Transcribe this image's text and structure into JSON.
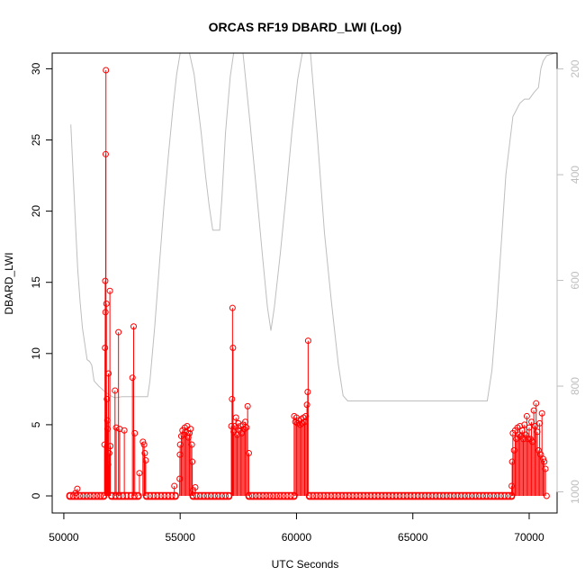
{
  "chart_data": {
    "type": "scatter",
    "title": "ORCAS RF19 DBARD_LWI (Log)",
    "xlabel": "UTC Seconds",
    "ylabel": "DBARD_LWI",
    "xlim": [
      49500,
      71200
    ],
    "ylim": [
      -1.2,
      31.1
    ],
    "x_ticks": [
      50000,
      55000,
      60000,
      65000,
      70000
    ],
    "y_ticks": [
      0,
      5,
      10,
      15,
      20,
      25,
      30
    ],
    "y2_label": "",
    "y2_lim_top_to_bottom": [
      170,
      1040
    ],
    "y2_ticks": [
      200,
      400,
      600,
      800,
      1000
    ],
    "grid": false,
    "colors": {
      "points": "#ff0000",
      "secondary": "#bebebe",
      "axes": "#000000"
    },
    "series": [
      {
        "type": "scatter-with-drop-lines",
        "color": "#ff0000",
        "points": [
          [
            50500,
            0.2
          ],
          [
            50580,
            0.5
          ],
          [
            51750,
            3.6
          ],
          [
            51770,
            10.4
          ],
          [
            51780,
            15.1
          ],
          [
            51790,
            12.9
          ],
          [
            51800,
            24.0
          ],
          [
            51810,
            29.9
          ],
          [
            51830,
            13.5
          ],
          [
            51850,
            6.8
          ],
          [
            51870,
            5.3
          ],
          [
            51880,
            4.7
          ],
          [
            51900,
            2.2
          ],
          [
            51920,
            8.6
          ],
          [
            51950,
            3.0
          ],
          [
            51980,
            14.4
          ],
          [
            52000,
            3.5
          ],
          [
            52200,
            7.4
          ],
          [
            52250,
            4.8
          ],
          [
            52350,
            11.5
          ],
          [
            52400,
            4.7
          ],
          [
            52600,
            4.6
          ],
          [
            52950,
            8.3
          ],
          [
            53000,
            11.9
          ],
          [
            53050,
            4.4
          ],
          [
            53250,
            1.6
          ],
          [
            53400,
            3.8
          ],
          [
            53450,
            3.6
          ],
          [
            53480,
            3.0
          ],
          [
            53520,
            2.5
          ],
          [
            54750,
            0.7
          ],
          [
            54980,
            1.2
          ],
          [
            54990,
            2.9
          ],
          [
            55000,
            3.6
          ],
          [
            55050,
            4.2
          ],
          [
            55100,
            4.6
          ],
          [
            55150,
            4.3
          ],
          [
            55200,
            4.8
          ],
          [
            55250,
            4.5
          ],
          [
            55300,
            4.9
          ],
          [
            55350,
            4.1
          ],
          [
            55400,
            4.4
          ],
          [
            55450,
            4.7
          ],
          [
            55500,
            3.6
          ],
          [
            55520,
            2.4
          ],
          [
            55550,
            0.4
          ],
          [
            55650,
            0.6
          ],
          [
            57200,
            4.9
          ],
          [
            57230,
            6.8
          ],
          [
            57250,
            13.2
          ],
          [
            57270,
            10.4
          ],
          [
            57300,
            4.5
          ],
          [
            57350,
            4.9
          ],
          [
            57400,
            5.5
          ],
          [
            57450,
            4.3
          ],
          [
            57500,
            5.1
          ],
          [
            57550,
            4.6
          ],
          [
            57600,
            4.9
          ],
          [
            57650,
            4.4
          ],
          [
            57700,
            5.0
          ],
          [
            57750,
            4.7
          ],
          [
            57800,
            5.2
          ],
          [
            57850,
            4.8
          ],
          [
            57900,
            6.3
          ],
          [
            57950,
            3.0
          ],
          [
            59900,
            5.6
          ],
          [
            59950,
            5.2
          ],
          [
            60000,
            5.5
          ],
          [
            60050,
            5.1
          ],
          [
            60100,
            5.3
          ],
          [
            60150,
            5.0
          ],
          [
            60200,
            5.4
          ],
          [
            60250,
            5.1
          ],
          [
            60300,
            5.5
          ],
          [
            60350,
            5.2
          ],
          [
            60400,
            5.6
          ],
          [
            60450,
            6.4
          ],
          [
            60480,
            7.3
          ],
          [
            60500,
            10.9
          ],
          [
            69250,
            0.7
          ],
          [
            69270,
            2.4
          ],
          [
            69300,
            4.4
          ],
          [
            69350,
            3.2
          ],
          [
            69400,
            4.6
          ],
          [
            69450,
            4.0
          ],
          [
            69500,
            4.8
          ],
          [
            69550,
            4.3
          ],
          [
            69600,
            4.9
          ],
          [
            69650,
            4.2
          ],
          [
            69700,
            4.6
          ],
          [
            69750,
            4.0
          ],
          [
            69800,
            5.0
          ],
          [
            69850,
            4.3
          ],
          [
            69900,
            5.6
          ],
          [
            69950,
            4.0
          ],
          [
            70000,
            4.8
          ],
          [
            70050,
            4.0
          ],
          [
            70100,
            5.2
          ],
          [
            70150,
            3.8
          ],
          [
            70200,
            6.0
          ],
          [
            70250,
            4.9
          ],
          [
            70300,
            6.5
          ],
          [
            70350,
            4.5
          ],
          [
            70400,
            3.2
          ],
          [
            70450,
            5.1
          ],
          [
            70500,
            2.9
          ],
          [
            70550,
            5.8
          ],
          [
            70600,
            2.6
          ],
          [
            70650,
            2.4
          ],
          [
            70700,
            1.9
          ],
          [
            70750,
            0.0
          ]
        ],
        "zero_segments": [
          [
            50250,
            51720
          ],
          [
            52050,
            53200
          ],
          [
            53550,
            54800
          ],
          [
            55550,
            57100
          ],
          [
            57950,
            59900
          ],
          [
            60550,
            69250
          ]
        ]
      },
      {
        "type": "line",
        "axis": "secondary",
        "color": "#bebebe",
        "points": [
          [
            50300,
            305
          ],
          [
            50400,
            400
          ],
          [
            50500,
            495
          ],
          [
            50600,
            580
          ],
          [
            50700,
            640
          ],
          [
            50800,
            690
          ],
          [
            50900,
            720
          ],
          [
            51000,
            750
          ],
          [
            51100,
            753
          ],
          [
            51200,
            760
          ],
          [
            51300,
            790
          ],
          [
            51500,
            800
          ],
          [
            51750,
            810
          ],
          [
            52000,
            818
          ],
          [
            52200,
            822
          ],
          [
            52500,
            820
          ],
          [
            52800,
            820
          ],
          [
            53200,
            820
          ],
          [
            53600,
            820
          ],
          [
            53700,
            790
          ],
          [
            53900,
            690
          ],
          [
            54100,
            575
          ],
          [
            54300,
            460
          ],
          [
            54500,
            360
          ],
          [
            54700,
            270
          ],
          [
            54850,
            210
          ],
          [
            55000,
            165
          ],
          [
            55400,
            165
          ],
          [
            55600,
            210
          ],
          [
            55900,
            320
          ],
          [
            56100,
            405
          ],
          [
            56250,
            460
          ],
          [
            56400,
            505
          ],
          [
            56500,
            505
          ],
          [
            56700,
            505
          ],
          [
            56800,
            440
          ],
          [
            56950,
            320
          ],
          [
            57150,
            215
          ],
          [
            57300,
            165
          ],
          [
            57700,
            165
          ],
          [
            58000,
            300
          ],
          [
            58300,
            440
          ],
          [
            58550,
            560
          ],
          [
            58750,
            650
          ],
          [
            58900,
            695
          ],
          [
            59050,
            650
          ],
          [
            59300,
            550
          ],
          [
            59550,
            440
          ],
          [
            59800,
            320
          ],
          [
            60050,
            220
          ],
          [
            60250,
            165
          ],
          [
            60600,
            165
          ],
          [
            60900,
            330
          ],
          [
            61200,
            510
          ],
          [
            61500,
            640
          ],
          [
            61800,
            760
          ],
          [
            62000,
            818
          ],
          [
            62200,
            828
          ],
          [
            65000,
            828
          ],
          [
            68200,
            828
          ],
          [
            68400,
            770
          ],
          [
            68600,
            660
          ],
          [
            68800,
            530
          ],
          [
            69000,
            400
          ],
          [
            69300,
            290
          ],
          [
            69600,
            265
          ],
          [
            69800,
            257
          ],
          [
            70000,
            257
          ],
          [
            70200,
            245
          ],
          [
            70400,
            235
          ],
          [
            70500,
            200
          ],
          [
            70600,
            185
          ],
          [
            70750,
            175
          ],
          [
            71100,
            165
          ]
        ]
      }
    ]
  }
}
